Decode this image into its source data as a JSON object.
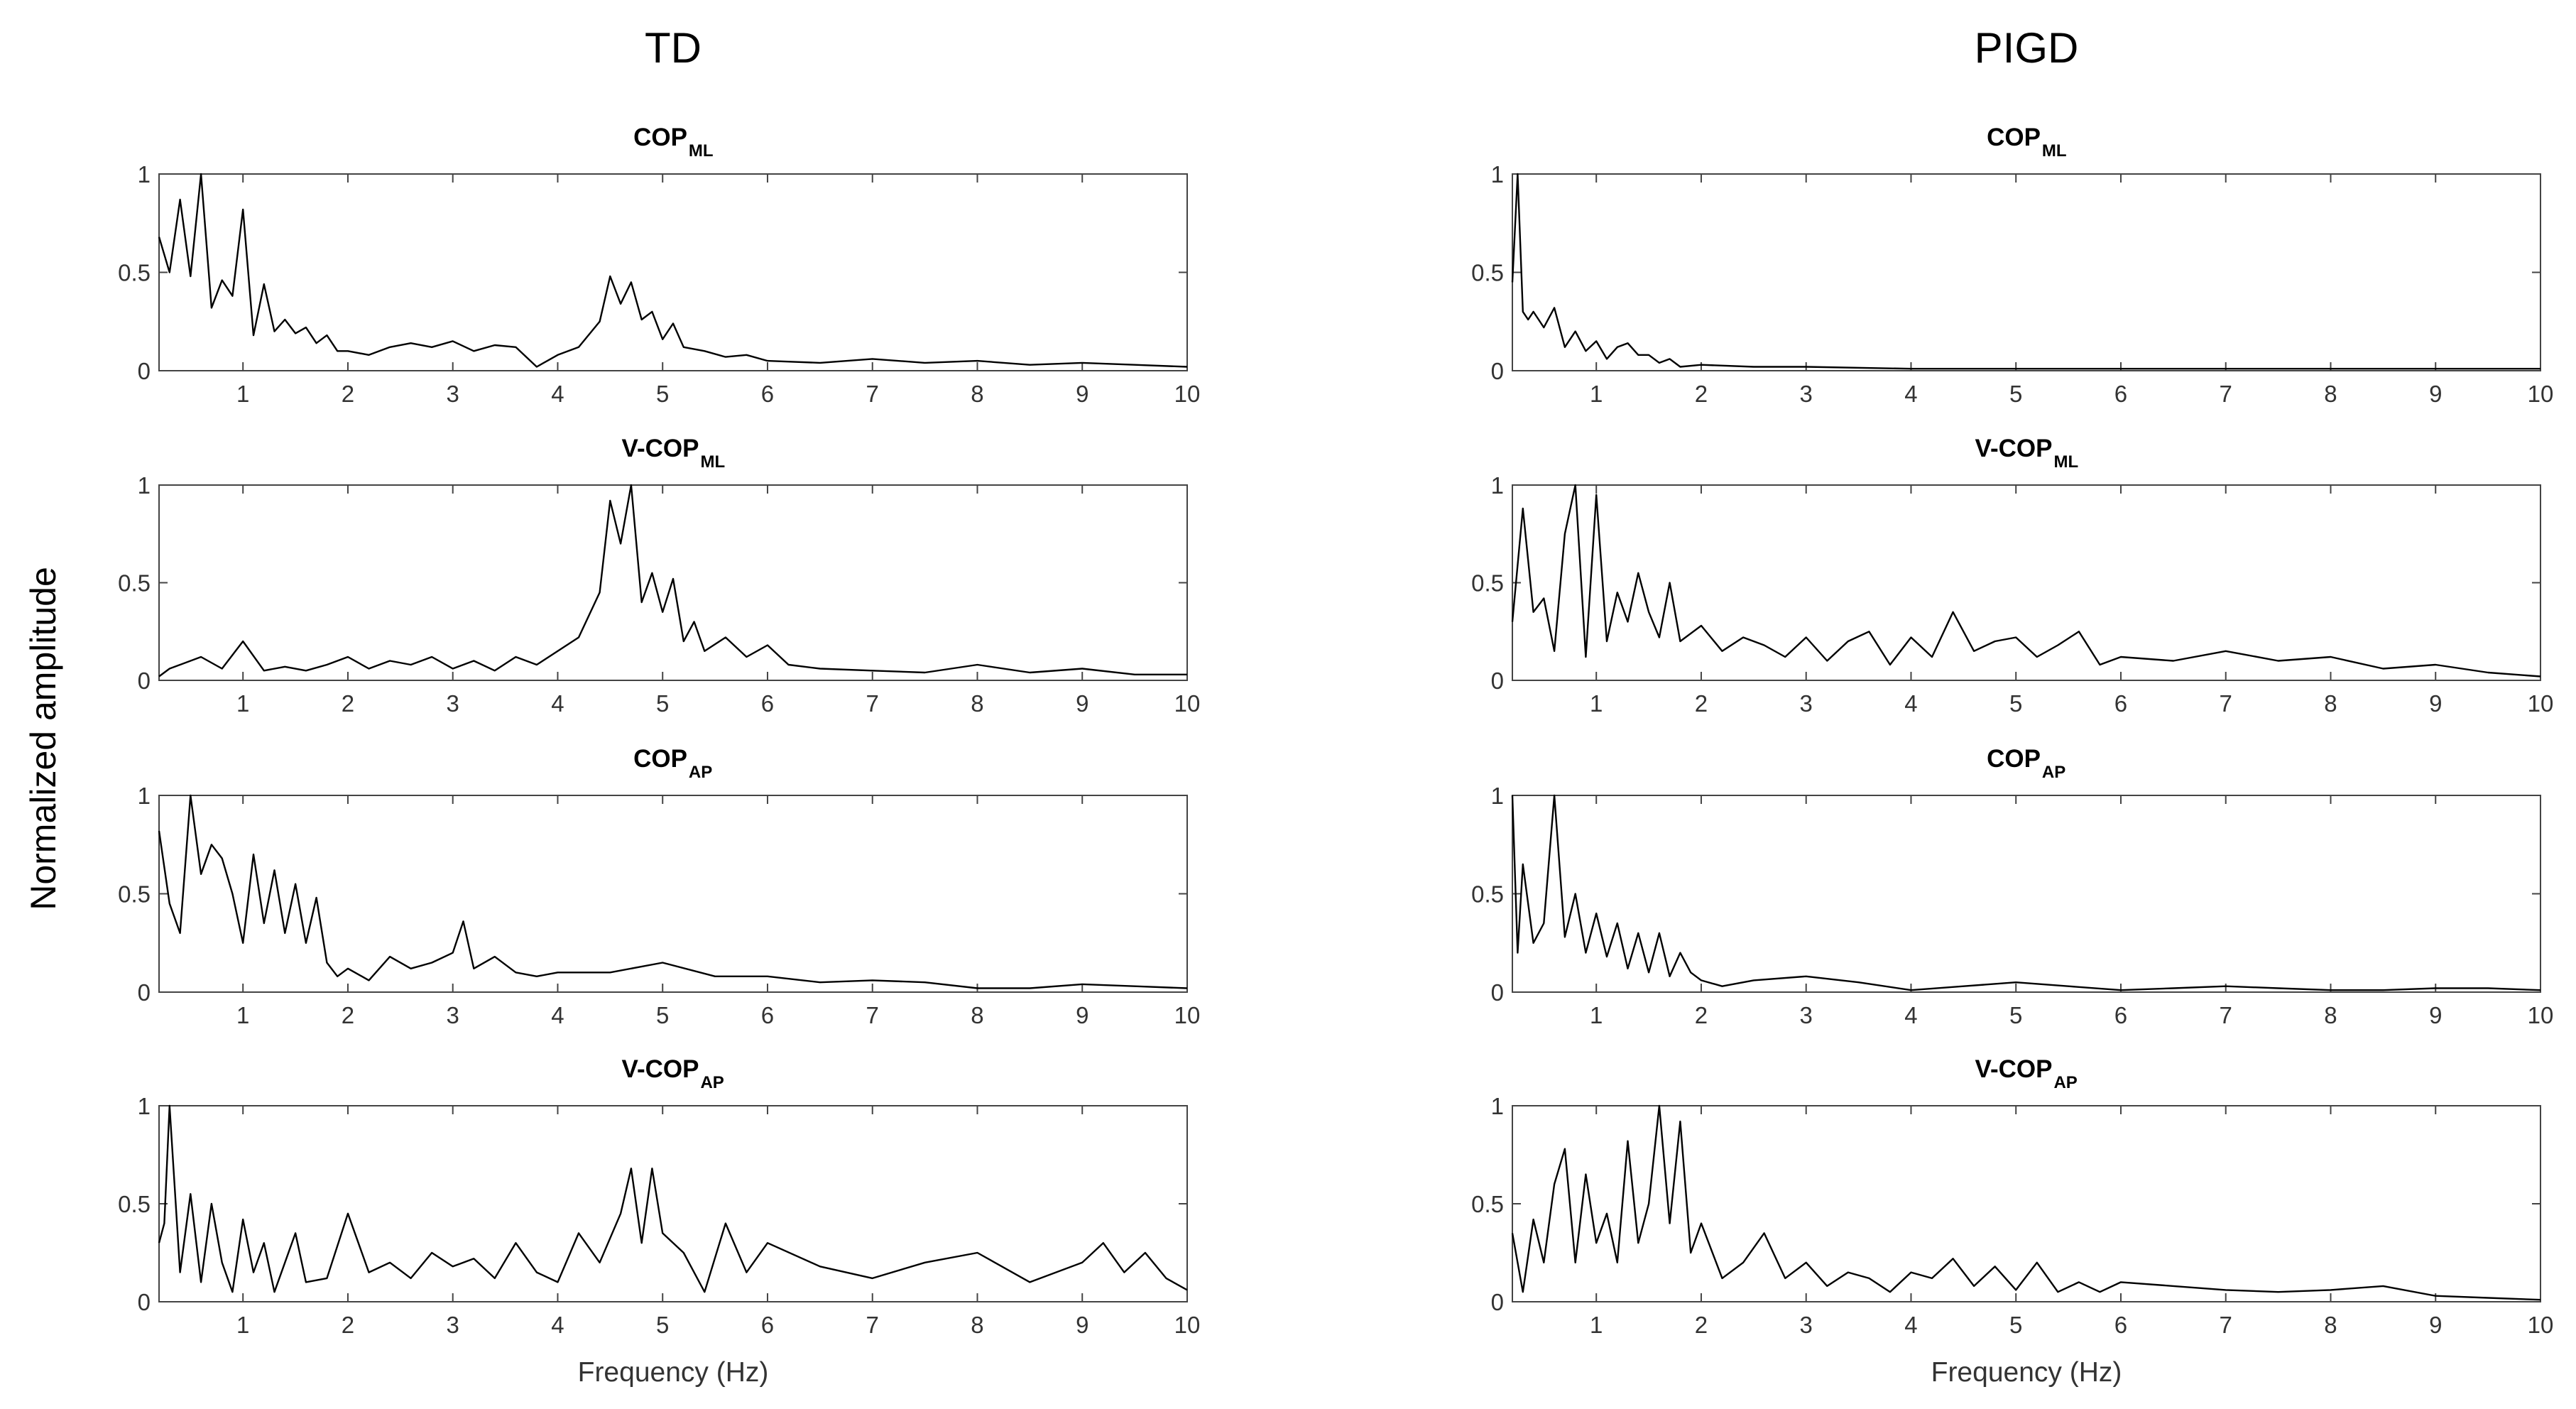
{
  "figure": {
    "column_titles": [
      "TD",
      "PIGD"
    ],
    "ylabel": "Normalized amplitude",
    "xlabel": "Frequency (Hz)"
  },
  "chart_data": [
    {
      "type": "line",
      "group": "TD",
      "title_main": "COP",
      "title_sub": "ML",
      "xlim": [
        0.2,
        10
      ],
      "ylim": [
        0,
        1
      ],
      "xticks": [
        1,
        2,
        3,
        4,
        5,
        6,
        7,
        8,
        9,
        10
      ],
      "yticks": [
        0,
        0.5,
        1
      ],
      "xlabel": "",
      "ylabel": "",
      "series": [
        {
          "x": [
            0.2,
            0.3,
            0.4,
            0.5,
            0.6,
            0.7,
            0.8,
            0.9,
            1.0,
            1.1,
            1.2,
            1.3,
            1.4,
            1.5,
            1.6,
            1.7,
            1.8,
            1.9,
            2.0,
            2.2,
            2.4,
            2.6,
            2.8,
            3.0,
            3.2,
            3.4,
            3.6,
            3.8,
            4.0,
            4.2,
            4.4,
            4.5,
            4.6,
            4.7,
            4.8,
            4.9,
            5.0,
            5.1,
            5.2,
            5.4,
            5.6,
            5.8,
            6.0,
            6.5,
            7.0,
            7.5,
            8.0,
            8.5,
            9.0,
            9.5,
            10.0
          ],
          "y": [
            0.68,
            0.5,
            0.87,
            0.48,
            1.0,
            0.32,
            0.46,
            0.38,
            0.82,
            0.18,
            0.44,
            0.2,
            0.26,
            0.19,
            0.22,
            0.14,
            0.18,
            0.1,
            0.1,
            0.08,
            0.12,
            0.14,
            0.12,
            0.15,
            0.1,
            0.13,
            0.12,
            0.02,
            0.08,
            0.12,
            0.25,
            0.48,
            0.34,
            0.45,
            0.26,
            0.3,
            0.16,
            0.24,
            0.12,
            0.1,
            0.07,
            0.08,
            0.05,
            0.04,
            0.06,
            0.04,
            0.05,
            0.03,
            0.04,
            0.03,
            0.02
          ]
        }
      ]
    },
    {
      "type": "line",
      "group": "PIGD",
      "title_main": "COP",
      "title_sub": "ML",
      "xlim": [
        0.2,
        10
      ],
      "ylim": [
        0,
        1
      ],
      "xticks": [
        1,
        2,
        3,
        4,
        5,
        6,
        7,
        8,
        9,
        10
      ],
      "yticks": [
        0,
        0.5,
        1
      ],
      "xlabel": "",
      "ylabel": "",
      "series": [
        {
          "x": [
            0.2,
            0.25,
            0.3,
            0.35,
            0.4,
            0.5,
            0.6,
            0.7,
            0.8,
            0.9,
            1.0,
            1.1,
            1.2,
            1.3,
            1.4,
            1.5,
            1.6,
            1.7,
            1.8,
            2.0,
            2.5,
            3.0,
            4.0,
            5.0,
            6.0,
            7.0,
            8.0,
            9.0,
            10.0
          ],
          "y": [
            0.45,
            1.0,
            0.3,
            0.26,
            0.3,
            0.22,
            0.32,
            0.12,
            0.2,
            0.1,
            0.15,
            0.06,
            0.12,
            0.14,
            0.08,
            0.08,
            0.04,
            0.06,
            0.02,
            0.03,
            0.02,
            0.02,
            0.01,
            0.01,
            0.01,
            0.01,
            0.01,
            0.01,
            0.01
          ]
        }
      ]
    },
    {
      "type": "line",
      "group": "TD",
      "title_main": "V-COP",
      "title_sub": "ML",
      "xlim": [
        0.2,
        10
      ],
      "ylim": [
        0,
        1
      ],
      "xticks": [
        1,
        2,
        3,
        4,
        5,
        6,
        7,
        8,
        9,
        10
      ],
      "yticks": [
        0,
        0.5,
        1
      ],
      "xlabel": "",
      "ylabel": "",
      "series": [
        {
          "x": [
            0.2,
            0.3,
            0.4,
            0.6,
            0.8,
            1.0,
            1.2,
            1.4,
            1.6,
            1.8,
            2.0,
            2.2,
            2.4,
            2.6,
            2.8,
            3.0,
            3.2,
            3.4,
            3.6,
            3.8,
            4.0,
            4.2,
            4.4,
            4.5,
            4.6,
            4.7,
            4.8,
            4.9,
            5.0,
            5.1,
            5.2,
            5.3,
            5.4,
            5.6,
            5.8,
            6.0,
            6.2,
            6.5,
            7.0,
            7.5,
            8.0,
            8.5,
            9.0,
            9.5,
            10.0
          ],
          "y": [
            0.02,
            0.06,
            0.08,
            0.12,
            0.06,
            0.2,
            0.05,
            0.07,
            0.05,
            0.08,
            0.12,
            0.06,
            0.1,
            0.08,
            0.12,
            0.06,
            0.1,
            0.05,
            0.12,
            0.08,
            0.15,
            0.22,
            0.45,
            0.92,
            0.7,
            1.0,
            0.4,
            0.55,
            0.35,
            0.52,
            0.2,
            0.3,
            0.15,
            0.22,
            0.12,
            0.18,
            0.08,
            0.06,
            0.05,
            0.04,
            0.08,
            0.04,
            0.06,
            0.03,
            0.03
          ]
        }
      ]
    },
    {
      "type": "line",
      "group": "PIGD",
      "title_main": "V-COP",
      "title_sub": "ML",
      "xlim": [
        0.2,
        10
      ],
      "ylim": [
        0,
        1
      ],
      "xticks": [
        1,
        2,
        3,
        4,
        5,
        6,
        7,
        8,
        9,
        10
      ],
      "yticks": [
        0,
        0.5,
        1
      ],
      "xlabel": "",
      "ylabel": "",
      "series": [
        {
          "x": [
            0.2,
            0.3,
            0.4,
            0.5,
            0.6,
            0.7,
            0.8,
            0.9,
            1.0,
            1.1,
            1.2,
            1.3,
            1.4,
            1.5,
            1.6,
            1.7,
            1.8,
            2.0,
            2.2,
            2.4,
            2.6,
            2.8,
            3.0,
            3.2,
            3.4,
            3.6,
            3.8,
            4.0,
            4.2,
            4.4,
            4.6,
            4.8,
            5.0,
            5.2,
            5.4,
            5.6,
            5.8,
            6.0,
            6.5,
            7.0,
            7.5,
            8.0,
            8.5,
            9.0,
            9.5,
            10.0
          ],
          "y": [
            0.3,
            0.88,
            0.35,
            0.42,
            0.15,
            0.75,
            1.0,
            0.12,
            0.95,
            0.2,
            0.45,
            0.3,
            0.55,
            0.35,
            0.22,
            0.5,
            0.2,
            0.28,
            0.15,
            0.22,
            0.18,
            0.12,
            0.22,
            0.1,
            0.2,
            0.25,
            0.08,
            0.22,
            0.12,
            0.35,
            0.15,
            0.2,
            0.22,
            0.12,
            0.18,
            0.25,
            0.08,
            0.12,
            0.1,
            0.15,
            0.1,
            0.12,
            0.06,
            0.08,
            0.04,
            0.02
          ]
        }
      ]
    },
    {
      "type": "line",
      "group": "TD",
      "title_main": "COP",
      "title_sub": "AP",
      "xlim": [
        0.2,
        10
      ],
      "ylim": [
        0,
        1
      ],
      "xticks": [
        1,
        2,
        3,
        4,
        5,
        6,
        7,
        8,
        9,
        10
      ],
      "yticks": [
        0,
        0.5,
        1
      ],
      "xlabel": "",
      "ylabel": "",
      "series": [
        {
          "x": [
            0.2,
            0.3,
            0.4,
            0.5,
            0.6,
            0.7,
            0.8,
            0.9,
            1.0,
            1.1,
            1.2,
            1.3,
            1.4,
            1.5,
            1.6,
            1.7,
            1.8,
            1.9,
            2.0,
            2.2,
            2.4,
            2.6,
            2.8,
            3.0,
            3.1,
            3.2,
            3.4,
            3.6,
            3.8,
            4.0,
            4.5,
            5.0,
            5.5,
            6.0,
            6.5,
            7.0,
            7.5,
            8.0,
            8.5,
            9.0,
            9.5,
            10.0
          ],
          "y": [
            0.82,
            0.45,
            0.3,
            1.0,
            0.6,
            0.75,
            0.68,
            0.5,
            0.25,
            0.7,
            0.35,
            0.62,
            0.3,
            0.55,
            0.25,
            0.48,
            0.15,
            0.08,
            0.12,
            0.06,
            0.18,
            0.12,
            0.15,
            0.2,
            0.36,
            0.12,
            0.18,
            0.1,
            0.08,
            0.1,
            0.1,
            0.15,
            0.08,
            0.08,
            0.05,
            0.06,
            0.05,
            0.02,
            0.02,
            0.04,
            0.03,
            0.02
          ]
        }
      ]
    },
    {
      "type": "line",
      "group": "PIGD",
      "title_main": "COP",
      "title_sub": "AP",
      "xlim": [
        0.2,
        10
      ],
      "ylim": [
        0,
        1
      ],
      "xticks": [
        1,
        2,
        3,
        4,
        5,
        6,
        7,
        8,
        9,
        10
      ],
      "yticks": [
        0,
        0.5,
        1
      ],
      "xlabel": "",
      "ylabel": "",
      "series": [
        {
          "x": [
            0.2,
            0.25,
            0.3,
            0.4,
            0.5,
            0.6,
            0.7,
            0.8,
            0.9,
            1.0,
            1.1,
            1.2,
            1.3,
            1.4,
            1.5,
            1.6,
            1.7,
            1.8,
            1.9,
            2.0,
            2.2,
            2.5,
            3.0,
            3.5,
            4.0,
            4.5,
            5.0,
            5.5,
            6.0,
            6.5,
            7.0,
            7.5,
            8.0,
            8.5,
            9.0,
            9.5,
            10.0
          ],
          "y": [
            1.0,
            0.2,
            0.65,
            0.25,
            0.35,
            1.0,
            0.28,
            0.5,
            0.2,
            0.4,
            0.18,
            0.35,
            0.12,
            0.3,
            0.1,
            0.3,
            0.08,
            0.2,
            0.1,
            0.06,
            0.03,
            0.06,
            0.08,
            0.05,
            0.01,
            0.03,
            0.05,
            0.03,
            0.01,
            0.02,
            0.03,
            0.02,
            0.01,
            0.01,
            0.02,
            0.02,
            0.01
          ]
        }
      ]
    },
    {
      "type": "line",
      "group": "TD",
      "title_main": "V-COP",
      "title_sub": "AP",
      "xlim": [
        0.2,
        10
      ],
      "ylim": [
        0,
        1
      ],
      "xticks": [
        1,
        2,
        3,
        4,
        5,
        6,
        7,
        8,
        9,
        10
      ],
      "yticks": [
        0,
        0.5,
        1
      ],
      "xlabel": "",
      "ylabel": "",
      "series": [
        {
          "x": [
            0.2,
            0.25,
            0.3,
            0.4,
            0.5,
            0.6,
            0.7,
            0.8,
            0.9,
            1.0,
            1.1,
            1.2,
            1.3,
            1.4,
            1.5,
            1.6,
            1.8,
            2.0,
            2.2,
            2.4,
            2.6,
            2.8,
            3.0,
            3.2,
            3.4,
            3.6,
            3.8,
            4.0,
            4.2,
            4.4,
            4.6,
            4.7,
            4.8,
            4.9,
            5.0,
            5.2,
            5.4,
            5.6,
            5.8,
            6.0,
            6.5,
            7.0,
            7.5,
            8.0,
            8.5,
            9.0,
            9.2,
            9.4,
            9.6,
            9.8,
            10.0
          ],
          "y": [
            0.3,
            0.4,
            1.0,
            0.15,
            0.55,
            0.1,
            0.5,
            0.2,
            0.05,
            0.42,
            0.15,
            0.3,
            0.05,
            0.2,
            0.35,
            0.1,
            0.12,
            0.45,
            0.15,
            0.2,
            0.12,
            0.25,
            0.18,
            0.22,
            0.12,
            0.3,
            0.15,
            0.1,
            0.35,
            0.2,
            0.45,
            0.68,
            0.3,
            0.68,
            0.35,
            0.25,
            0.05,
            0.4,
            0.15,
            0.3,
            0.18,
            0.12,
            0.2,
            0.25,
            0.1,
            0.2,
            0.3,
            0.15,
            0.25,
            0.12,
            0.06
          ]
        }
      ]
    },
    {
      "type": "line",
      "group": "PIGD",
      "title_main": "V-COP",
      "title_sub": "AP",
      "xlim": [
        0.2,
        10
      ],
      "ylim": [
        0,
        1
      ],
      "xticks": [
        1,
        2,
        3,
        4,
        5,
        6,
        7,
        8,
        9,
        10
      ],
      "yticks": [
        0,
        0.5,
        1
      ],
      "xlabel": "",
      "ylabel": "",
      "series": [
        {
          "x": [
            0.2,
            0.3,
            0.4,
            0.5,
            0.6,
            0.7,
            0.8,
            0.9,
            1.0,
            1.1,
            1.2,
            1.3,
            1.4,
            1.5,
            1.6,
            1.7,
            1.8,
            1.9,
            2.0,
            2.2,
            2.4,
            2.6,
            2.8,
            3.0,
            3.2,
            3.4,
            3.6,
            3.8,
            4.0,
            4.2,
            4.4,
            4.6,
            4.8,
            5.0,
            5.2,
            5.4,
            5.6,
            5.8,
            6.0,
            6.5,
            7.0,
            7.5,
            8.0,
            8.5,
            9.0,
            9.5,
            10.0
          ],
          "y": [
            0.35,
            0.05,
            0.42,
            0.2,
            0.6,
            0.78,
            0.2,
            0.65,
            0.3,
            0.45,
            0.2,
            0.82,
            0.3,
            0.5,
            1.0,
            0.4,
            0.92,
            0.25,
            0.4,
            0.12,
            0.2,
            0.35,
            0.12,
            0.2,
            0.08,
            0.15,
            0.12,
            0.05,
            0.15,
            0.12,
            0.22,
            0.08,
            0.18,
            0.06,
            0.2,
            0.05,
            0.1,
            0.05,
            0.1,
            0.08,
            0.06,
            0.05,
            0.06,
            0.08,
            0.03,
            0.02,
            0.01
          ]
        }
      ]
    }
  ]
}
